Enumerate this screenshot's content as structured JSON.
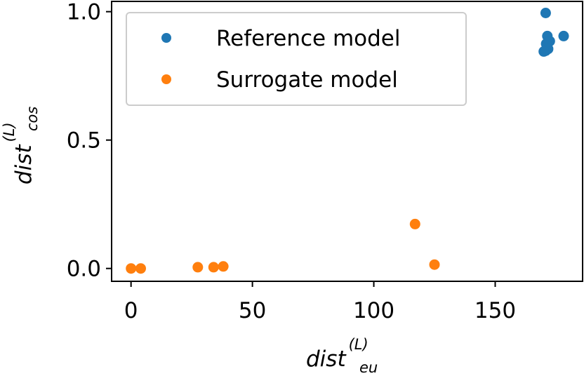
{
  "chart_data": {
    "type": "scatter",
    "title": "",
    "xlabel": {
      "main": "dist",
      "sup": "(L)",
      "sub": "eu"
    },
    "ylabel": {
      "main": "dist",
      "sup": "(L)",
      "sub": "cos"
    },
    "xlim": [
      -8,
      186
    ],
    "ylim": [
      -0.05,
      1.04
    ],
    "xticks": [
      0,
      50,
      100,
      150
    ],
    "xtick_labels": [
      "0",
      "50",
      "100",
      "150"
    ],
    "yticks": [
      0.0,
      0.5,
      1.0
    ],
    "ytick_labels": [
      "0.0",
      "0.5",
      "1.0"
    ],
    "grid": false,
    "legend_position": "top-left",
    "series": [
      {
        "name": "Reference model",
        "color": "#1f77b4",
        "points": [
          [
            170.8,
            0.995
          ],
          [
            178.2,
            0.905
          ],
          [
            171.5,
            0.905
          ],
          [
            172.5,
            0.885
          ],
          [
            171.0,
            0.875
          ],
          [
            171.8,
            0.855
          ],
          [
            170.8,
            0.848
          ],
          [
            170.0,
            0.845
          ]
        ]
      },
      {
        "name": "Surrogate model",
        "color": "#ff7f0e",
        "points": [
          [
            0.0,
            0.0
          ],
          [
            4.0,
            0.0
          ],
          [
            27.5,
            0.005
          ],
          [
            34.0,
            0.005
          ],
          [
            38.0,
            0.008
          ],
          [
            117.0,
            0.173
          ],
          [
            125.0,
            0.015
          ]
        ]
      }
    ]
  }
}
